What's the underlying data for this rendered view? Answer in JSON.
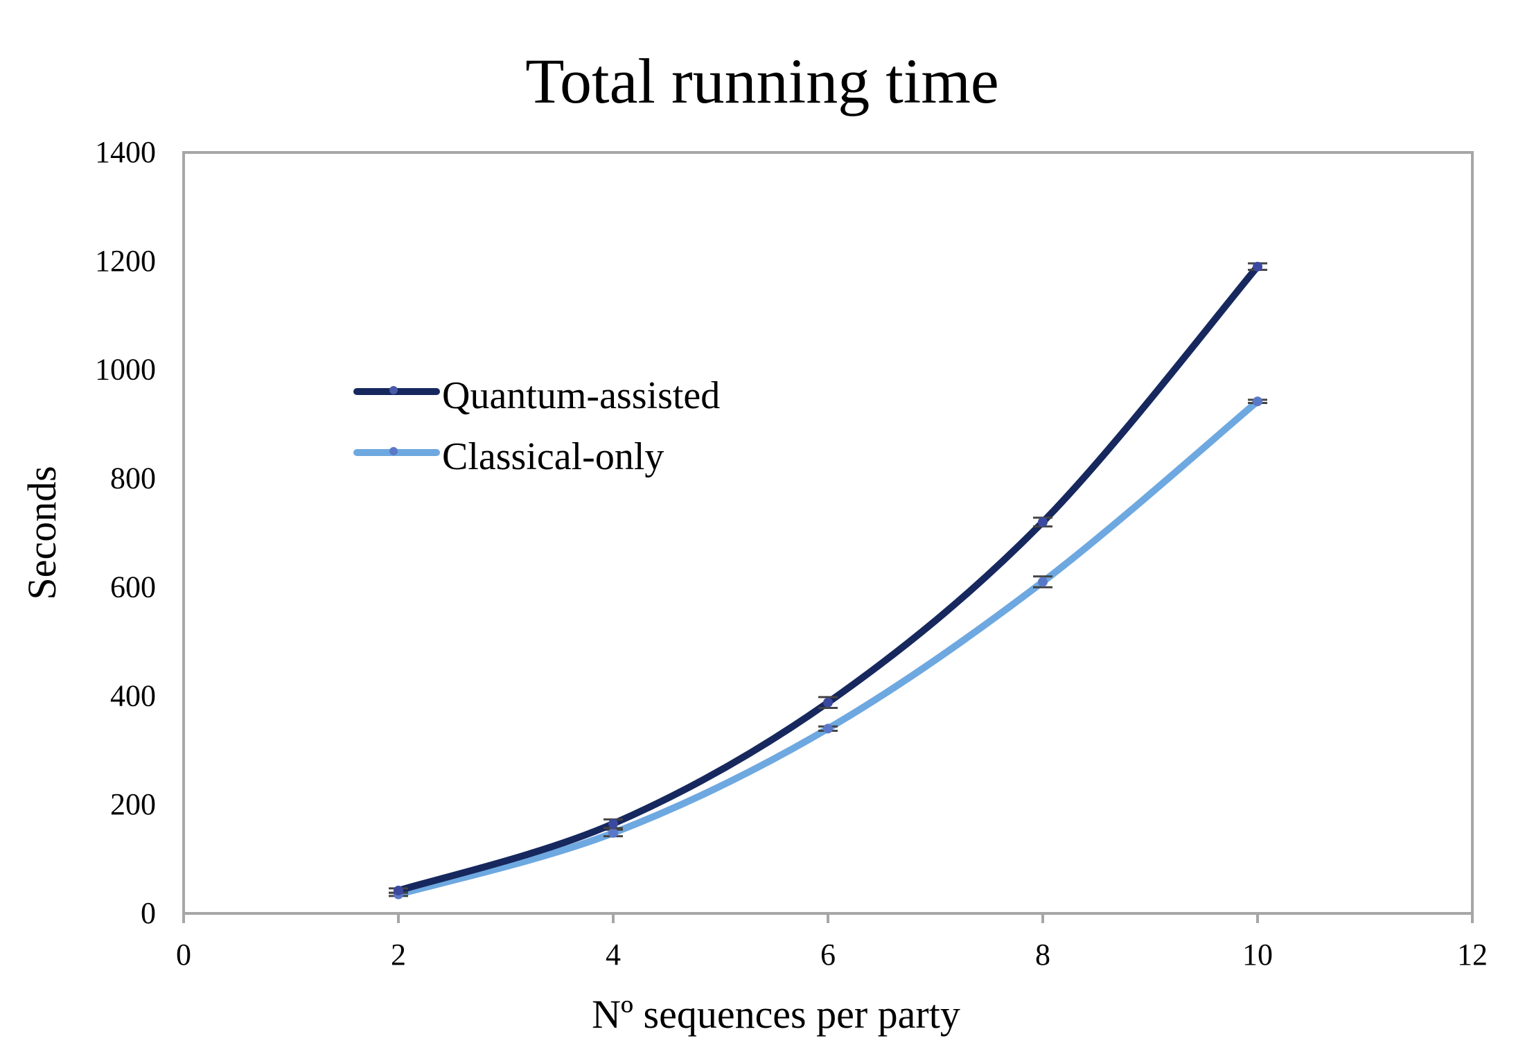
{
  "chart_data": {
    "type": "line",
    "title": "Total running time",
    "xlabel": "Nº sequences per party",
    "ylabel": "Seconds",
    "xlim": [
      0,
      12
    ],
    "ylim": [
      0,
      1400
    ],
    "xticks": [
      0,
      2,
      4,
      6,
      8,
      10,
      12
    ],
    "yticks": [
      0,
      200,
      400,
      600,
      800,
      1000,
      1200,
      1400
    ],
    "grid": false,
    "legend": "upper-left inside plot",
    "series": [
      {
        "name": "Quantum-assisted",
        "color": "#16285e",
        "x": [
          2,
          4,
          6,
          8,
          10
        ],
        "y": [
          42,
          165,
          388,
          720,
          1190
        ],
        "error": [
          4,
          8,
          10,
          8,
          6
        ]
      },
      {
        "name": "Classical-only",
        "color": "#6ea8e0",
        "x": [
          2,
          4,
          6,
          8,
          10
        ],
        "y": [
          35,
          148,
          340,
          610,
          942
        ],
        "error": [
          3,
          6,
          4,
          10,
          3
        ]
      }
    ]
  }
}
